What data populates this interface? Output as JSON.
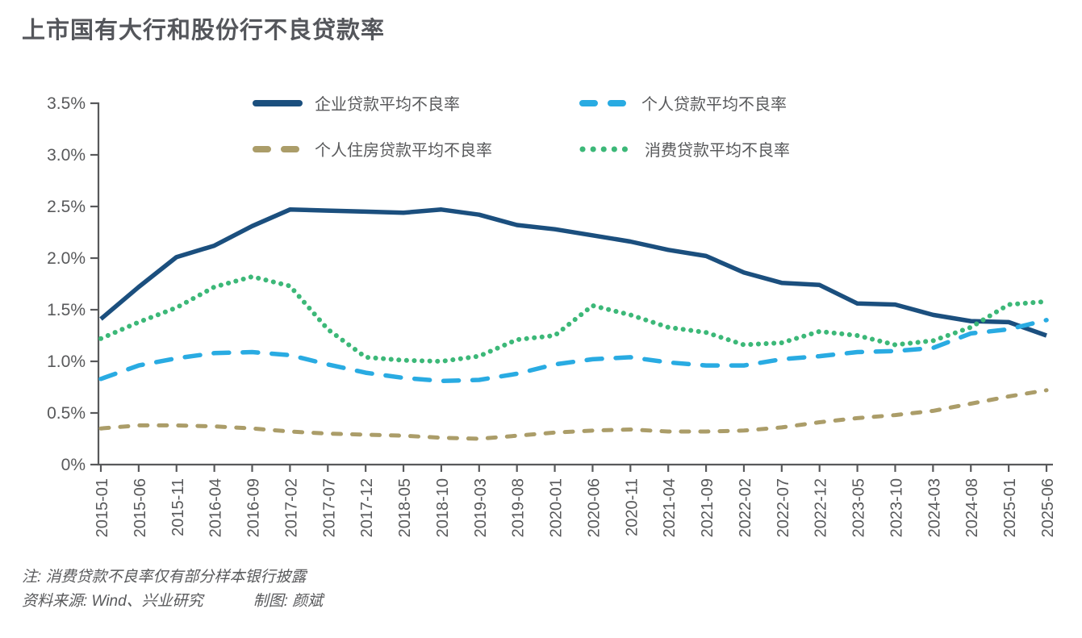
{
  "title": "上市国有大行和股份行不良贷款率",
  "notes": {
    "line1": "注: 消费贷款不良率仅有部分样本银行披露",
    "source": "资料来源: Wind、兴业研究",
    "credit": "制图: 颜斌"
  },
  "colors": {
    "title_text": "#54565b",
    "body_text": "#58595b",
    "axis": "#58595b"
  },
  "chart_data": {
    "type": "line",
    "title": "上市国有大行和股份行不良贷款率",
    "xlabel": "",
    "ylabel": "",
    "ylim": [
      0,
      3.5
    ],
    "grid": false,
    "legend_position": "top",
    "yticks": [
      "0%",
      "0.5%",
      "1.0%",
      "1.5%",
      "2.0%",
      "2.5%",
      "3.0%",
      "3.5%"
    ],
    "categories": [
      "2015-01",
      "2015-06",
      "2015-11",
      "2016-04",
      "2016-09",
      "2017-02",
      "2017-07",
      "2017-12",
      "2018-05",
      "2018-10",
      "2019-03",
      "2019-08",
      "2020-01",
      "2020-06",
      "2020-11",
      "2021-04",
      "2021-09",
      "2022-02",
      "2022-07",
      "2022-12",
      "2023-05",
      "2023-10",
      "2024-03",
      "2024-08",
      "2025-01",
      "2025-06"
    ],
    "unit": "%",
    "series": [
      {
        "name": "企业贷款平均不良率",
        "color": "#1b4f7e",
        "style": "solid",
        "values": [
          1.41,
          1.72,
          2.01,
          2.12,
          2.31,
          2.47,
          2.46,
          2.45,
          2.44,
          2.47,
          2.42,
          2.32,
          2.28,
          2.22,
          2.16,
          2.08,
          2.02,
          1.86,
          1.76,
          1.74,
          1.56,
          1.55,
          1.45,
          1.39,
          1.38,
          1.25
        ]
      },
      {
        "name": "个人贷款平均不良率",
        "color": "#29abe2",
        "style": "dashed",
        "values": [
          0.83,
          0.96,
          1.03,
          1.08,
          1.09,
          1.06,
          0.97,
          0.89,
          0.84,
          0.81,
          0.82,
          0.88,
          0.97,
          1.02,
          1.04,
          0.99,
          0.96,
          0.96,
          1.02,
          1.05,
          1.09,
          1.1,
          1.13,
          1.27,
          1.31,
          1.4
        ]
      },
      {
        "name": "个人住房贷款平均不良率",
        "color": "#ab9d69",
        "style": "dashed-short",
        "values": [
          0.35,
          0.38,
          0.38,
          0.37,
          0.35,
          0.32,
          0.3,
          0.29,
          0.28,
          0.26,
          0.25,
          0.28,
          0.31,
          0.33,
          0.34,
          0.32,
          0.32,
          0.33,
          0.36,
          0.41,
          0.45,
          0.48,
          0.52,
          0.59,
          0.66,
          0.72
        ]
      },
      {
        "name": "消费贷款平均不良率",
        "color": "#3cb878",
        "style": "dotted",
        "values": [
          1.22,
          1.38,
          1.52,
          1.72,
          1.82,
          1.73,
          1.31,
          1.04,
          1.01,
          1.0,
          1.05,
          1.21,
          1.25,
          1.54,
          1.45,
          1.33,
          1.28,
          1.16,
          1.18,
          1.29,
          1.25,
          1.16,
          1.2,
          1.33,
          1.55,
          1.58
        ]
      }
    ]
  }
}
